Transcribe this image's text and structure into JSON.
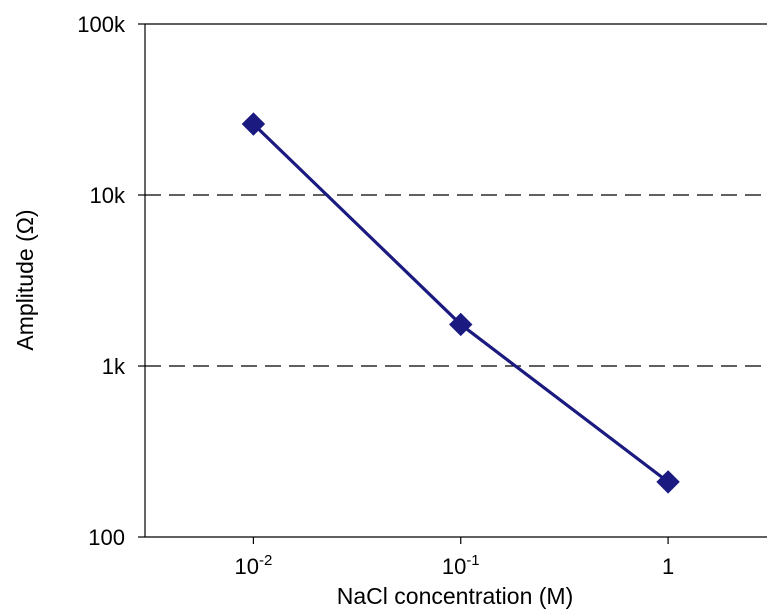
{
  "chart_data": {
    "type": "line",
    "title": "",
    "xlabel": "NaCl concentration (M)",
    "ylabel": "Amplitude (Ω)",
    "x_scale": "log",
    "y_scale": "log",
    "xlim": [
      0.003,
      3
    ],
    "ylim": [
      100,
      100000
    ],
    "x_ticks": [
      {
        "value": 0.01,
        "base": "10",
        "exp": "-2"
      },
      {
        "value": 0.1,
        "base": "10",
        "exp": "-1"
      },
      {
        "value": 1,
        "base": "1",
        "exp": ""
      }
    ],
    "y_ticks": [
      {
        "value": 100000,
        "label": "100k"
      },
      {
        "value": 10000,
        "label": "10k"
      },
      {
        "value": 1000,
        "label": "1k"
      },
      {
        "value": 100,
        "label": "100"
      }
    ],
    "gridlines_y": [
      10000,
      1000
    ],
    "grid_style": "dashed",
    "series": [
      {
        "marker": "diamond",
        "color": "#1a1a80",
        "x": [
          0.01,
          0.1,
          1
        ],
        "y": [
          26000,
          1750,
          210
        ]
      }
    ],
    "legend": "none"
  }
}
